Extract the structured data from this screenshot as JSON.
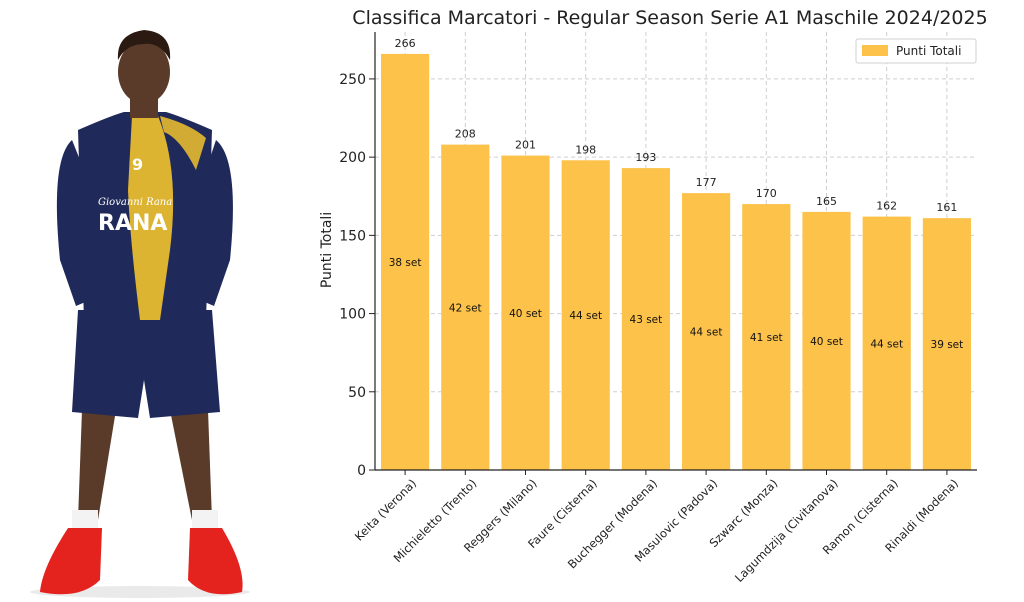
{
  "colors": {
    "bar": "#FCC24A",
    "grid": "#cfcfcf",
    "jersey_navy": "#1f2a5a",
    "jersey_yellow": "#f2c22e",
    "shoe_red": "#e4231f"
  },
  "photo": {
    "jersey_number": "9",
    "sponsor_text": "RANA",
    "sponsor_script": "Giovanni Rana"
  },
  "chart_data": {
    "type": "bar",
    "title": "Classifica Marcatori - Regular Season Serie A1 Maschile 2024/2025",
    "xlabel": "",
    "ylabel": "Punti Totali",
    "ylim": [
      0,
      280
    ],
    "yticks": [
      0,
      50,
      100,
      150,
      200,
      250
    ],
    "grid": true,
    "legend_position": "top-right",
    "categories": [
      "Keita (Verona)",
      "Michieletto (Trento)",
      "Reggers (Milano)",
      "Faure (Cisterna)",
      "Buchegger (Modena)",
      "Masulovic (Padova)",
      "Szwarc (Monza)",
      "Lagumdzija (Civitanova)",
      "Ramon (Cisterna)",
      "Rinaldi (Modena)"
    ],
    "series": [
      {
        "name": "Punti Totali",
        "values": [
          266,
          208,
          201,
          198,
          193,
          177,
          170,
          165,
          162,
          161
        ]
      }
    ],
    "annotations": [
      "38 set",
      "42 set",
      "40 set",
      "44 set",
      "43 set",
      "44 set",
      "41 set",
      "40 set",
      "44 set",
      "39 set"
    ]
  }
}
